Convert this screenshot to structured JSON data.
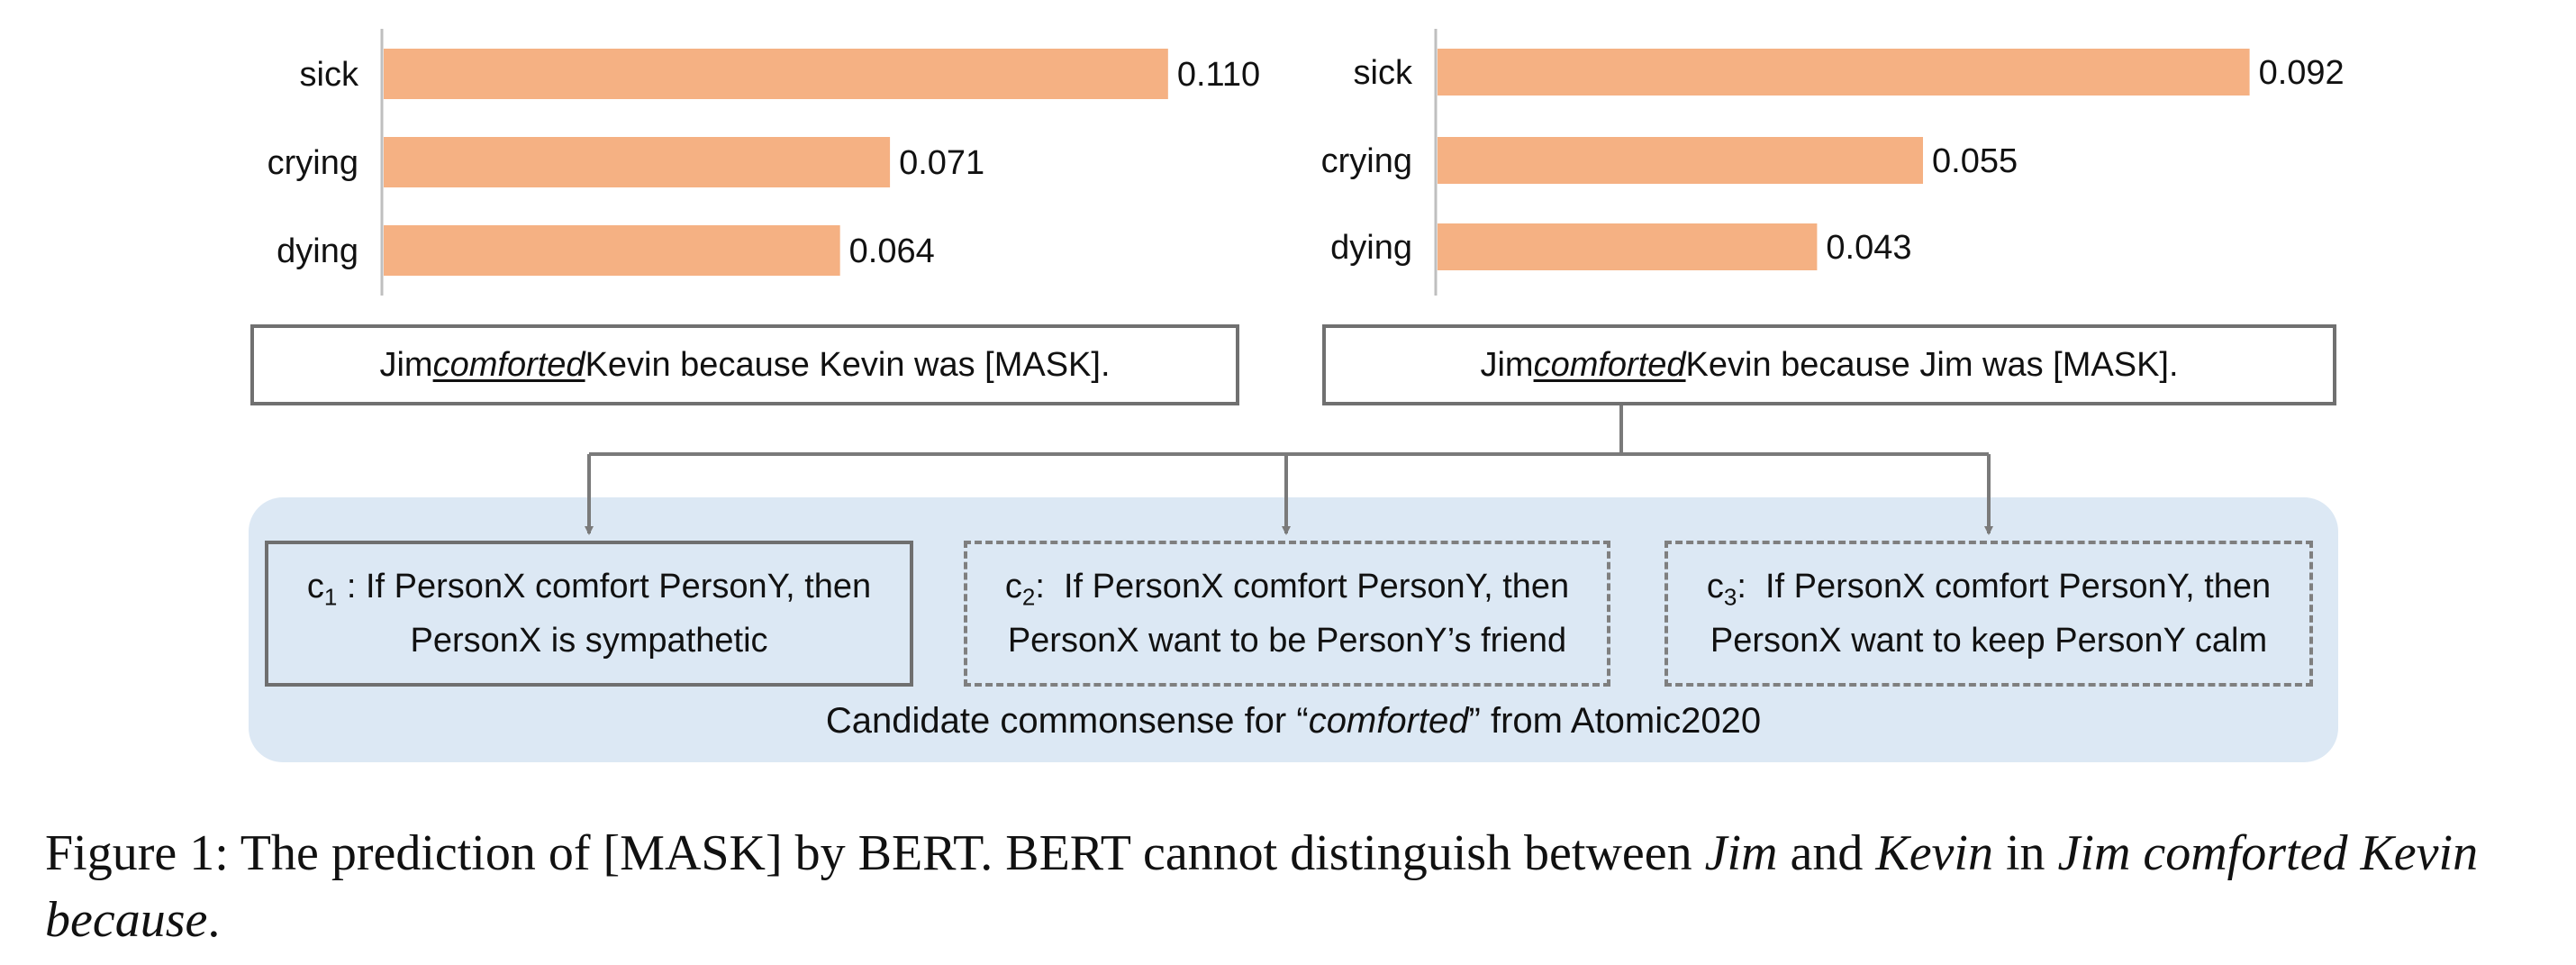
{
  "chart_data": [
    {
      "type": "bar",
      "orientation": "horizontal",
      "categories": [
        "sick",
        "crying",
        "dying"
      ],
      "values": [
        0.11,
        0.071,
        0.064
      ],
      "value_labels": [
        "0.110",
        "0.071",
        "0.064"
      ],
      "xlim": [
        0,
        0.12
      ],
      "grid": false,
      "bar_color": "#f5b183"
    },
    {
      "type": "bar",
      "orientation": "horizontal",
      "categories": [
        "sick",
        "crying",
        "dying"
      ],
      "values": [
        0.092,
        0.055,
        0.043
      ],
      "value_labels": [
        "0.092",
        "0.055",
        "0.043"
      ],
      "xlim": [
        0,
        0.1
      ],
      "grid": false,
      "bar_color": "#f5b183"
    }
  ],
  "sentences": {
    "left": {
      "pre": "Jim ",
      "verb": "comforted",
      "post": " Kevin because Kevin was [MASK]."
    },
    "right": {
      "pre": "Jim ",
      "verb": "comforted",
      "post": " Kevin because Jim was [MASK]."
    }
  },
  "candidates": [
    {
      "id": "c",
      "sub": "1",
      "sep": " : ",
      "line1": "If PersonX comfort PersonY, then",
      "line2": "PersonX is sympathetic"
    },
    {
      "id": "c",
      "sub": "2",
      "sep": ":  ",
      "line1": "If PersonX comfort PersonY, then",
      "line2": "PersonX want to be PersonY’s friend"
    },
    {
      "id": "c",
      "sub": "3",
      "sep": ":  ",
      "line1": "If PersonX comfort PersonY, then",
      "line2": "PersonX want to keep PersonY calm"
    }
  ],
  "panel_caption": {
    "pre": "Candidate commonsense for “",
    "verb": "comforted",
    "post": "” from Atomic2020"
  },
  "figure_caption": {
    "label": "Figure 1: The prediction of [MASK] by BERT. BERT cannot distinguish between ",
    "name1": "Jim",
    "and": " and ",
    "name2": "Kevin",
    "in": " in ",
    "phrase": "Jim comforted Kevin because",
    "end": "."
  },
  "colors": {
    "bar": "#f5b183",
    "panel": "#dce8f4",
    "border": "#707070",
    "connector": "#7a7a7a"
  }
}
